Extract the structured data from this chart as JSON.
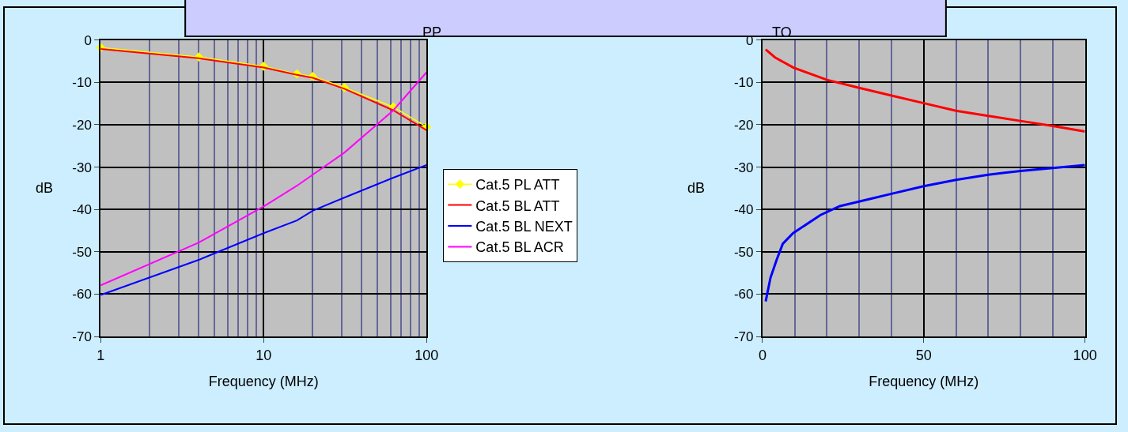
{
  "chart_data": [
    {
      "type": "line",
      "x": [
        1,
        4,
        10,
        16,
        20,
        31.25,
        62.5,
        100
      ],
      "xlabel": "Frequency (MHz)",
      "ylabel": "dB",
      "annotations": [
        "PP",
        "TO"
      ],
      "series": [
        {
          "name": "Cat.5 PL ATT",
          "color": "#ffff00",
          "marker": "diamond",
          "values": [
            -1.8,
            -4.0,
            -6.2,
            -8.0,
            -8.6,
            -11.2,
            -15.8,
            -20.5
          ]
        },
        {
          "name": "Cat.5 BL ATT",
          "color": "#ff0000",
          "values": [
            -2.1,
            -4.3,
            -6.5,
            -8.2,
            -8.9,
            -11.5,
            -16.6,
            -21.3
          ]
        },
        {
          "name": "Cat.5 BL NEXT",
          "color": "#0000ff",
          "values": [
            -60.2,
            -51.9,
            -45.6,
            -42.6,
            -40.3,
            -37.2,
            -32.5,
            -29.5
          ]
        },
        {
          "name": "Cat.5 BL ACR",
          "color": "#ff00ff",
          "values": [
            -57.9,
            -47.8,
            -39.3,
            -34.4,
            -31.8,
            -26.6,
            -16.6,
            -7.6
          ]
        }
      ],
      "log": "x",
      "xlim": [
        1,
        100
      ],
      "xticks": [
        1,
        {
          "value": 2,
          "label": null
        },
        {
          "value": 3,
          "label": null
        },
        {
          "value": 4,
          "label": null
        },
        {
          "value": 5,
          "label": null
        },
        {
          "value": 6,
          "label": null
        },
        {
          "value": 7,
          "label": null
        },
        {
          "value": 8,
          "label": null
        },
        {
          "value": 9,
          "label": null
        },
        10,
        {
          "value": 20,
          "label": null
        },
        {
          "value": 30,
          "label": null
        },
        {
          "value": 40,
          "label": null
        },
        {
          "value": 50,
          "label": null
        },
        {
          "value": 60,
          "label": null
        },
        {
          "value": 70,
          "label": null
        },
        {
          "value": 80,
          "label": null
        },
        {
          "value": 90,
          "label": null
        },
        100
      ],
      "ylim": [
        -70,
        0
      ],
      "yticks": [
        -70,
        -60,
        -50,
        -40,
        -30,
        -20,
        -10,
        0
      ],
      "grid": true,
      "legend": "right"
    },
    {
      "type": "line",
      "xlabel": "Frequency (MHz)",
      "ylabel": "dB",
      "series": [
        {
          "color": "#ff0000",
          "x": [
            1,
            3.9,
            9.6,
            20,
            30,
            40,
            50,
            60,
            70,
            80,
            90,
            100
          ],
          "values": [
            -2.2,
            -4.1,
            -6.5,
            -9.4,
            -11.3,
            -13.1,
            -14.9,
            -16.7,
            -17.9,
            -19.1,
            -20.3,
            -21.6
          ]
        },
        {
          "color": "#0000ff",
          "x": [
            1,
            2.5,
            4.4,
            6.3,
            9.5,
            18,
            24,
            34,
            40,
            50,
            60,
            70,
            80,
            90,
            100
          ],
          "values": [
            -61.7,
            -56.1,
            -51.9,
            -48.1,
            -45.6,
            -41.3,
            -39.2,
            -37.4,
            -36.3,
            -34.5,
            -33.0,
            -31.8,
            -30.9,
            -30.2,
            -29.5
          ]
        }
      ],
      "xlim": [
        0,
        100
      ],
      "xticks": [
        0,
        {
          "value": 10,
          "label": null
        },
        {
          "value": 20,
          "label": null
        },
        {
          "value": 30,
          "label": null
        },
        {
          "value": 40,
          "label": null
        },
        50,
        {
          "value": 60,
          "label": null
        },
        {
          "value": 70,
          "label": null
        },
        {
          "value": 80,
          "label": null
        },
        {
          "value": 90,
          "label": null
        },
        100
      ],
      "ylim": [
        -70,
        0
      ],
      "yticks": [
        -70,
        -60,
        -50,
        -40,
        -30,
        -20,
        -10,
        0
      ],
      "grid": true
    }
  ]
}
